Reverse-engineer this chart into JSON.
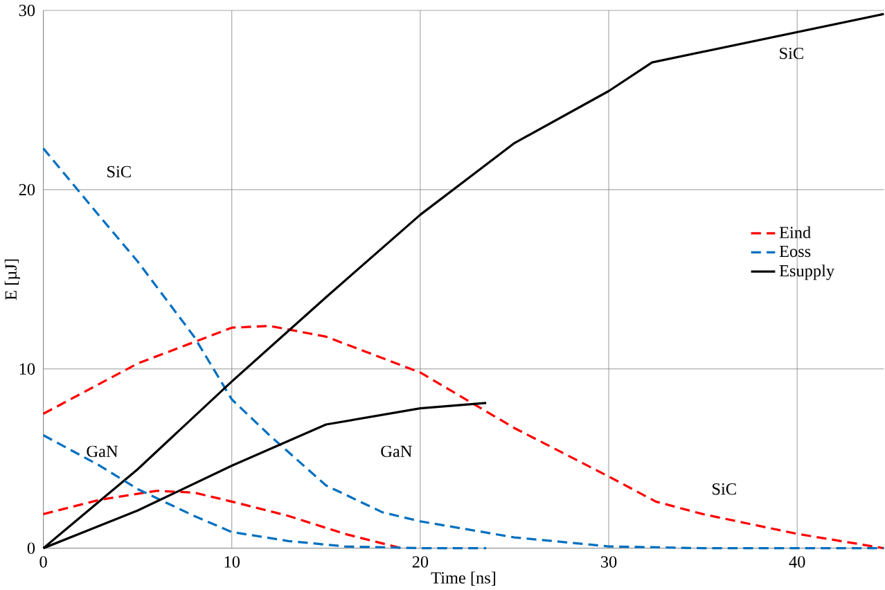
{
  "chart_data": {
    "type": "line",
    "xlabel": "Time [ns]",
    "ylabel": "E [µJ]",
    "xlim": [
      0,
      44.6
    ],
    "ylim": [
      0,
      30
    ],
    "xticks": [
      0,
      10,
      20,
      30,
      40
    ],
    "yticks": [
      0,
      10,
      20,
      30
    ],
    "grid": true,
    "legend": "right",
    "series": [
      {
        "name": "Eind",
        "color": "#ff0000",
        "line_style": "dashed",
        "x": [
          0,
          5,
          10,
          12,
          15,
          20,
          25,
          30,
          32.5,
          35,
          40,
          44.6
        ],
        "values": [
          7.5,
          10.3,
          12.3,
          12.4,
          11.8,
          9.8,
          6.7,
          4.0,
          2.6,
          1.9,
          0.8,
          0
        ]
      },
      {
        "name": "Eoss",
        "color": "#0070c0",
        "line_style": "dashed",
        "x": [
          0,
          3,
          5,
          8,
          10,
          12,
          15,
          18,
          20,
          25,
          30,
          35,
          44.6
        ],
        "values": [
          22.3,
          18.5,
          16,
          11.8,
          8.3,
          6.3,
          3.5,
          2.0,
          1.5,
          0.6,
          0.1,
          0,
          0
        ]
      },
      {
        "name": "Esupply",
        "color": "#000000",
        "line_style": "solid",
        "x": [
          0,
          5,
          10,
          15,
          20,
          25,
          30,
          32.3,
          44.6
        ],
        "values": [
          0,
          4.4,
          9.3,
          14.0,
          18.6,
          22.6,
          25.5,
          27.1,
          29.8
        ]
      },
      {
        "color": "#ff0000",
        "line_style": "dashed",
        "x": [
          0,
          3,
          6,
          8,
          10,
          13,
          16,
          19
        ],
        "values": [
          1.9,
          2.7,
          3.2,
          3.1,
          2.6,
          1.8,
          0.8,
          0
        ]
      },
      {
        "color": "#0070c0",
        "line_style": "dashed",
        "x": [
          0,
          3,
          5,
          8,
          10,
          13,
          16,
          20,
          23.5
        ],
        "values": [
          6.3,
          4.6,
          3.3,
          1.8,
          0.9,
          0.4,
          0.1,
          0,
          0
        ]
      },
      {
        "color": "#000000",
        "line_style": "solid",
        "x": [
          0,
          5,
          10,
          15,
          20,
          23.5
        ],
        "values": [
          0,
          2.1,
          4.6,
          6.9,
          7.8,
          8.1
        ]
      }
    ],
    "annotations": [
      "SiC",
      "GaN",
      "GaN",
      "SiC",
      "SiC"
    ]
  }
}
